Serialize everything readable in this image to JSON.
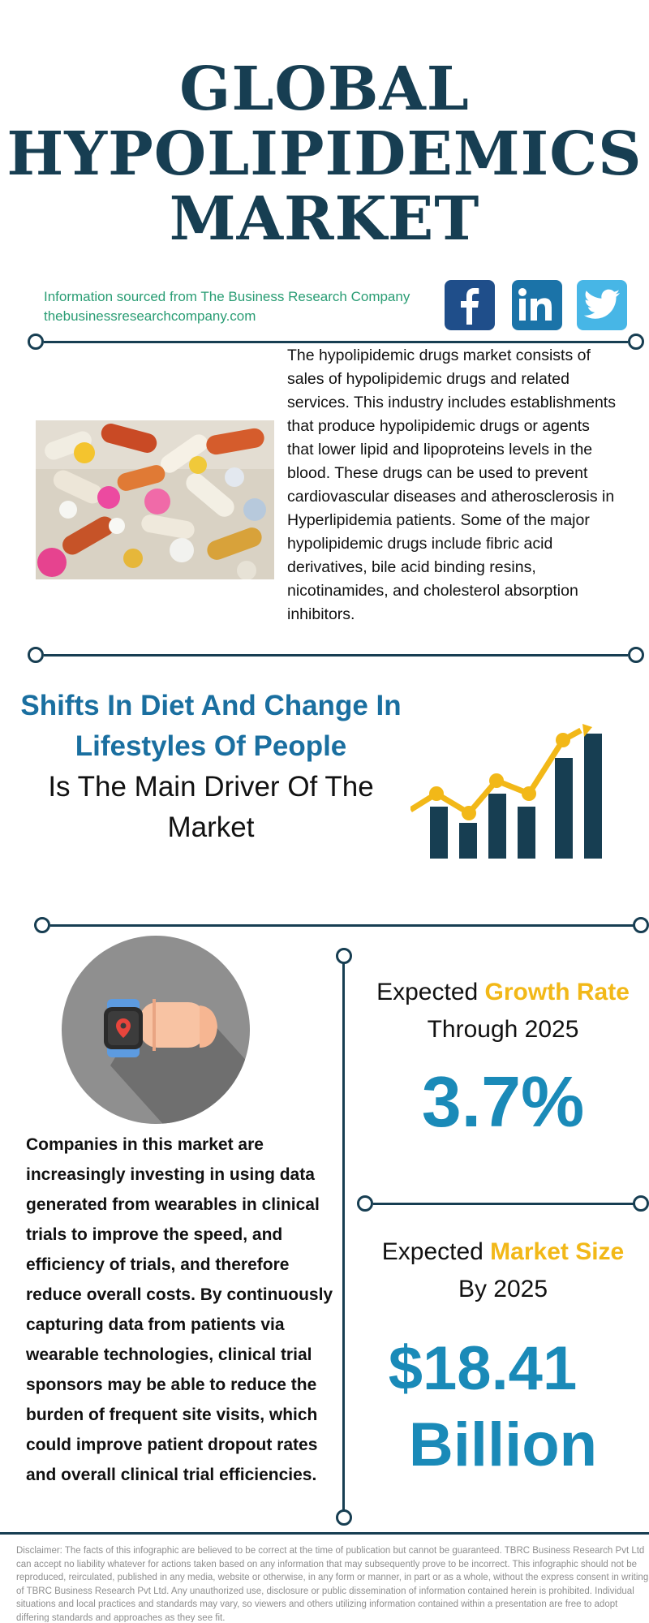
{
  "title": {
    "line1": "GLOBAL",
    "line2": "HYPOLIPIDEMICS",
    "line3": "MARKET"
  },
  "source": {
    "line1": "Information sourced from The Business Research Company",
    "line2": "thebusinessresearchcompany.com"
  },
  "social": [
    {
      "name": "facebook-icon",
      "glyph": "f",
      "color": "#1f4e8a"
    },
    {
      "name": "linkedin-icon",
      "glyph": "in",
      "color": "#1b73a8"
    },
    {
      "name": "twitter-icon",
      "glyph": "twitter",
      "color": "#47b6e6"
    }
  ],
  "intro": "The hypolipidemic drugs market consists of sales of hypolipidemic drugs and related services. This industry includes establishments that produce hypolipidemic drugs or agents that lower lipid and lipoproteins levels in the blood. These drugs can be used to prevent cardiovascular diseases and atherosclerosis in Hyperlipidemia patients. Some of the major hypolipidemic drugs include fibric acid derivatives, bile acid binding resins, nicotinamides, and cholesterol absorption inhibitors.",
  "driver": {
    "highlight_line1": "Shifts In Diet And Change In",
    "highlight_line2": "Lifestyles Of People",
    "rest_line1": "Is The Main Driver Of The",
    "rest_line2": "Market"
  },
  "companies": "Companies in this market are increasingly investing in using data generated from wearables in clinical trials to improve the speed, and efficiency of trials, and therefore reduce overall costs. By continuously capturing data from patients via wearable technologies, clinical trial sponsors may be able to reduce the burden of frequent site visits, which could improve patient dropout rates and overall clinical trial efficiencies.",
  "growth": {
    "prefix": "Expected ",
    "highlight": "Growth Rate",
    "line2": "Through 2025",
    "value": "3.7%"
  },
  "market_size": {
    "prefix": "Expected ",
    "highlight": "Market Size",
    "line2": "By 2025",
    "value_line1": "$18.41",
    "value_line2": "Billion"
  },
  "disclaimer": "Disclaimer: The facts of this infographic are believed to be correct at the time of publication but cannot be guaranteed. TBRC Business Research Pvt Ltd can accept no liability whatever for actions taken based on any information that may subsequently prove to be incorrect. This infographic should not be reproduced, reirculated, published in any media, website or otherwise, in any form or manner, in part or as a whole, without the express consent in writing of TBRC Business Research Pvt Ltd. Any unauthorized use, disclosure or public dissemination of information contained herein is prohibited. Individual situations and local practices and standards may vary, so viewers and others utilizing information contained within a presentation are free to adopt differing standards and approaches as they see fit.",
  "colors": {
    "navy": "#173e52",
    "accent_blue": "#1a6fa0",
    "value_blue": "#1a8ab8",
    "gold": "#f2b818",
    "source_green": "#2a9d74"
  }
}
